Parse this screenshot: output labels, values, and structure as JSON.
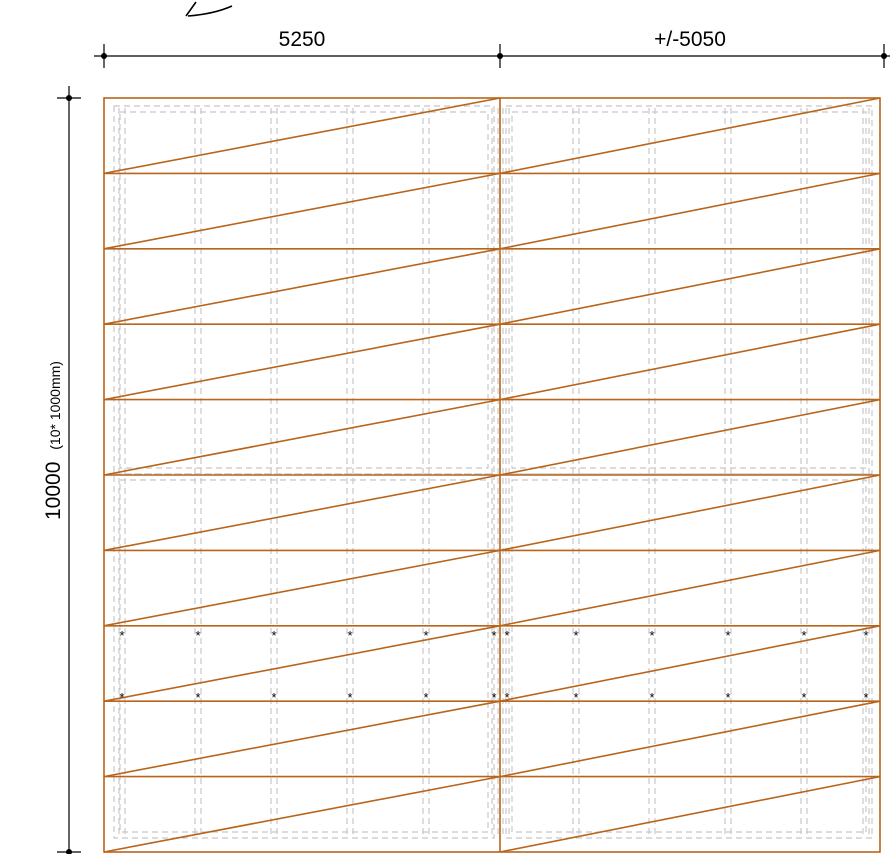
{
  "dimensions": {
    "top_left": "5250",
    "top_right": "+/-5050",
    "side_main": "10000",
    "side_note": "(10* 1000mm)"
  },
  "panels": {
    "rows": 10,
    "columns": 2
  },
  "colors": {
    "panel_stroke": "#b8641a",
    "frame_dashed": "#c8c8c8",
    "dimension_line": "#000000"
  },
  "marker_glyph": "*"
}
